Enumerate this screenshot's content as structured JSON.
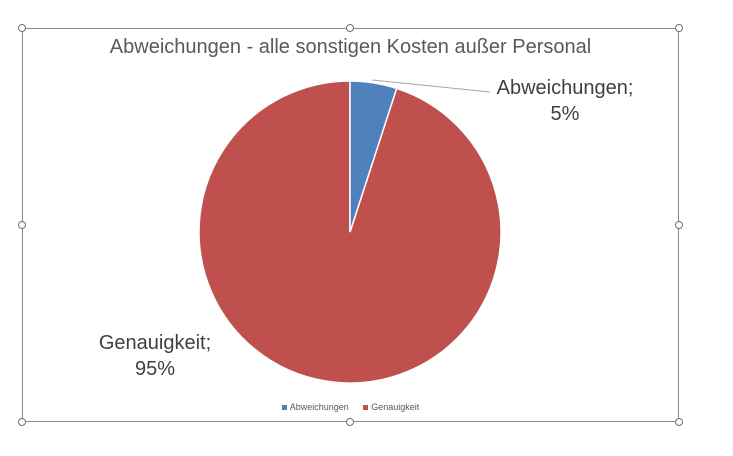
{
  "chart_data": {
    "type": "pie",
    "title": "Abweichungen - alle sonstigen Kosten außer Personal",
    "categories": [
      "Abweichungen",
      "Genauigkeit"
    ],
    "values": [
      5,
      95
    ],
    "unit": "%",
    "colors": [
      "#4f81bd",
      "#c0504d"
    ],
    "data_labels": [
      {
        "name": "Abweichungen;",
        "value": "5%"
      },
      {
        "name": "Genauigkeit;",
        "value": "95%"
      }
    ],
    "legend": {
      "placement": "bottom",
      "entries": [
        "Abweichungen",
        "Genauigkeit"
      ]
    }
  }
}
